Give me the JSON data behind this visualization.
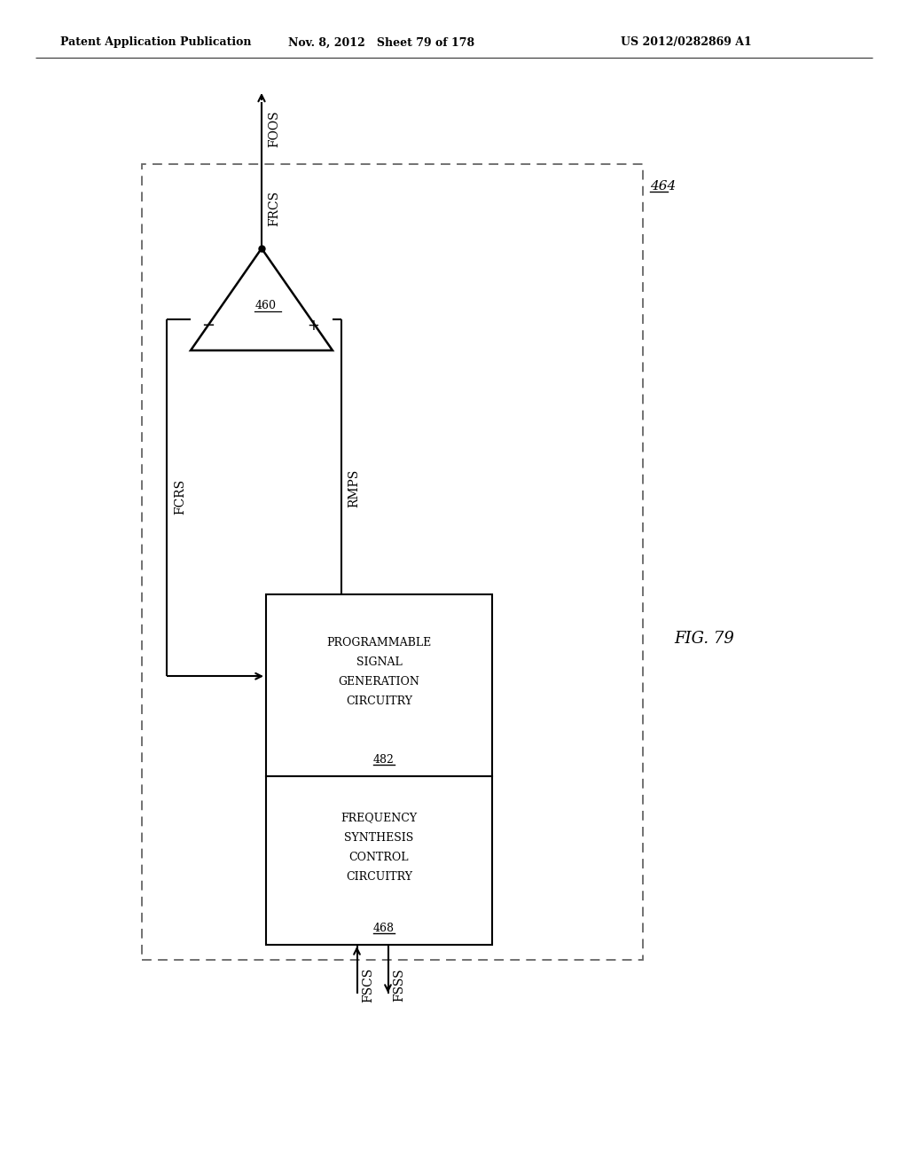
{
  "header_left": "Patent Application Publication",
  "header_mid": "Nov. 8, 2012   Sheet 79 of 178",
  "header_right": "US 2012/0282869 A1",
  "fig_label": "FIG. 79",
  "outer_box_464": "464",
  "comp_460": "460",
  "comp_482_lines": [
    "PROGRAMMABLE",
    "SIGNAL",
    "GENERATION",
    "CIRCUITRY"
  ],
  "comp_482_num": "482",
  "comp_468_lines": [
    "FREQUENCY",
    "SYNTHESIS",
    "CONTROL",
    "CIRCUITRY"
  ],
  "comp_468_num": "468",
  "label_foos": "FOOS",
  "label_frcs": "FRCS",
  "label_fcrs": "FCRS",
  "label_rmps": "RMPS",
  "label_fscs": "FSCS",
  "label_fsss": "FSSS",
  "bg_color": "#ffffff",
  "line_color": "#000000",
  "dash_color": "#666666",
  "text_color": "#000000"
}
